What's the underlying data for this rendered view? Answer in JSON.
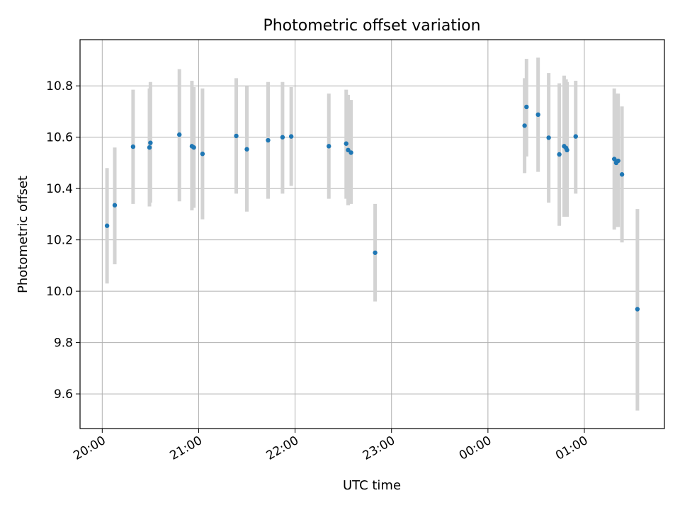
{
  "chart_data": {
    "type": "scatter",
    "title": "Photometric offset variation",
    "xlabel": "UTC time",
    "ylabel": "Photometric offset",
    "x_axis": "time (hours since 20:00 UTC on the displayed axis)",
    "xlim": [
      -0.23,
      5.83
    ],
    "ylim": [
      9.465,
      10.98
    ],
    "grid": true,
    "x_ticks": [
      {
        "value": 0,
        "label": "20:00"
      },
      {
        "value": 1,
        "label": "21:00"
      },
      {
        "value": 2,
        "label": "22:00"
      },
      {
        "value": 3,
        "label": "23:00"
      },
      {
        "value": 4,
        "label": "00:00"
      },
      {
        "value": 5,
        "label": "01:00"
      }
    ],
    "y_ticks": [
      {
        "value": 9.6,
        "label": "9.6"
      },
      {
        "value": 9.8,
        "label": "9.8"
      },
      {
        "value": 10.0,
        "label": "10.0"
      },
      {
        "value": 10.2,
        "label": "10.2"
      },
      {
        "value": 10.4,
        "label": "10.4"
      },
      {
        "value": 10.6,
        "label": "10.6"
      },
      {
        "value": 10.8,
        "label": "10.8"
      }
    ],
    "colors": {
      "point": "#1f77b4",
      "errorbar": "#d3d3d3",
      "grid": "#b0b0b0"
    },
    "points": [
      {
        "x": 0.05,
        "y": 10.255,
        "lo": 10.03,
        "hi": 10.48
      },
      {
        "x": 0.13,
        "y": 10.335,
        "lo": 10.105,
        "hi": 10.56
      },
      {
        "x": 0.32,
        "y": 10.563,
        "lo": 10.34,
        "hi": 10.785
      },
      {
        "x": 0.49,
        "y": 10.56,
        "lo": 10.33,
        "hi": 10.79
      },
      {
        "x": 0.5,
        "y": 10.578,
        "lo": 10.345,
        "hi": 10.815
      },
      {
        "x": 0.8,
        "y": 10.61,
        "lo": 10.35,
        "hi": 10.865
      },
      {
        "x": 0.93,
        "y": 10.565,
        "lo": 10.315,
        "hi": 10.82
      },
      {
        "x": 0.95,
        "y": 10.56,
        "lo": 10.325,
        "hi": 10.795
      },
      {
        "x": 1.04,
        "y": 10.535,
        "lo": 10.28,
        "hi": 10.79
      },
      {
        "x": 1.39,
        "y": 10.605,
        "lo": 10.38,
        "hi": 10.83
      },
      {
        "x": 1.5,
        "y": 10.553,
        "lo": 10.31,
        "hi": 10.8
      },
      {
        "x": 1.72,
        "y": 10.588,
        "lo": 10.36,
        "hi": 10.815
      },
      {
        "x": 1.87,
        "y": 10.6,
        "lo": 10.38,
        "hi": 10.815
      },
      {
        "x": 1.96,
        "y": 10.603,
        "lo": 10.41,
        "hi": 10.795
      },
      {
        "x": 2.35,
        "y": 10.565,
        "lo": 10.36,
        "hi": 10.77
      },
      {
        "x": 2.53,
        "y": 10.575,
        "lo": 10.36,
        "hi": 10.785
      },
      {
        "x": 2.55,
        "y": 10.55,
        "lo": 10.335,
        "hi": 10.765
      },
      {
        "x": 2.58,
        "y": 10.54,
        "lo": 10.34,
        "hi": 10.745
      },
      {
        "x": 2.83,
        "y": 10.15,
        "lo": 9.96,
        "hi": 10.34
      },
      {
        "x": 4.38,
        "y": 10.645,
        "lo": 10.46,
        "hi": 10.83
      },
      {
        "x": 4.4,
        "y": 10.718,
        "lo": 10.525,
        "hi": 10.905
      },
      {
        "x": 4.52,
        "y": 10.688,
        "lo": 10.465,
        "hi": 10.91
      },
      {
        "x": 4.63,
        "y": 10.598,
        "lo": 10.345,
        "hi": 10.85
      },
      {
        "x": 4.74,
        "y": 10.533,
        "lo": 10.255,
        "hi": 10.81
      },
      {
        "x": 4.79,
        "y": 10.565,
        "lo": 10.29,
        "hi": 10.84
      },
      {
        "x": 4.81,
        "y": 10.558,
        "lo": 10.29,
        "hi": 10.825
      },
      {
        "x": 4.82,
        "y": 10.55,
        "lo": 10.29,
        "hi": 10.815
      },
      {
        "x": 4.91,
        "y": 10.603,
        "lo": 10.38,
        "hi": 10.82
      },
      {
        "x": 5.31,
        "y": 10.515,
        "lo": 10.24,
        "hi": 10.79
      },
      {
        "x": 5.33,
        "y": 10.5,
        "lo": 10.25,
        "hi": 10.77
      },
      {
        "x": 5.35,
        "y": 10.508,
        "lo": 10.25,
        "hi": 10.77
      },
      {
        "x": 5.39,
        "y": 10.455,
        "lo": 10.19,
        "hi": 10.72
      },
      {
        "x": 5.55,
        "y": 9.93,
        "lo": 9.535,
        "hi": 10.32
      }
    ]
  }
}
